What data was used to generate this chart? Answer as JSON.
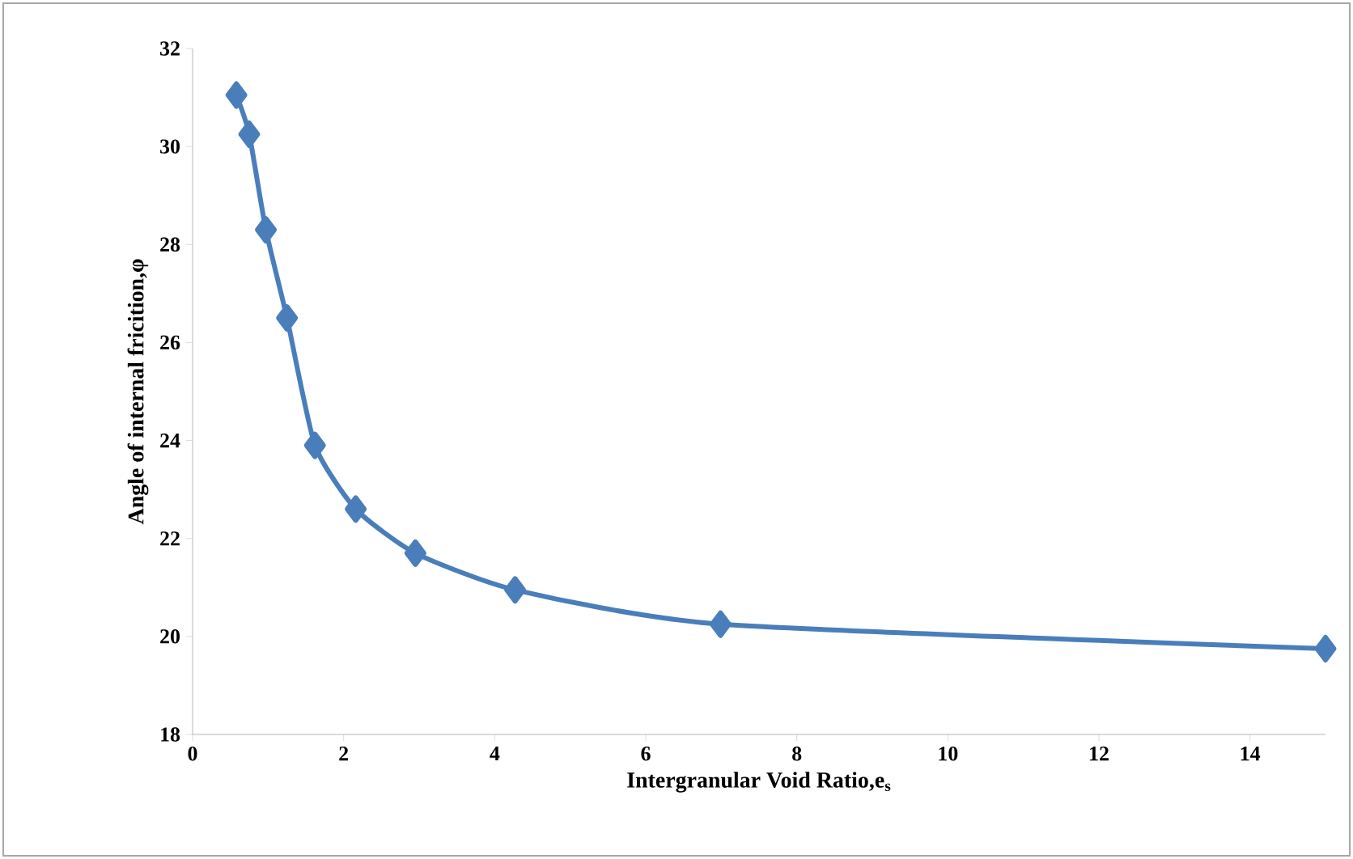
{
  "chart_data": {
    "type": "line",
    "xlabel": "Intergranular Void Ratio,e$_{s}$",
    "ylabel": "Angle of internal fricition,φ",
    "series": [
      {
        "color": "#4a7ebb",
        "x": [
          0.58,
          0.75,
          0.97,
          1.25,
          1.62,
          2.16,
          2.95,
          4.27,
          6.99,
          15.0
        ],
        "values": [
          31.05,
          30.25,
          28.3,
          26.5,
          23.9,
          22.6,
          21.7,
          20.95,
          20.25,
          19.75
        ]
      }
    ],
    "xlim": [
      0,
      15
    ],
    "ylim": [
      18,
      32
    ],
    "xticks": [
      0,
      2,
      4,
      6,
      8,
      10,
      12,
      14
    ],
    "yticks": [
      18,
      20,
      22,
      24,
      26,
      28,
      30,
      32
    ],
    "marker": "diamond",
    "line_style": "solid",
    "grid": false
  }
}
